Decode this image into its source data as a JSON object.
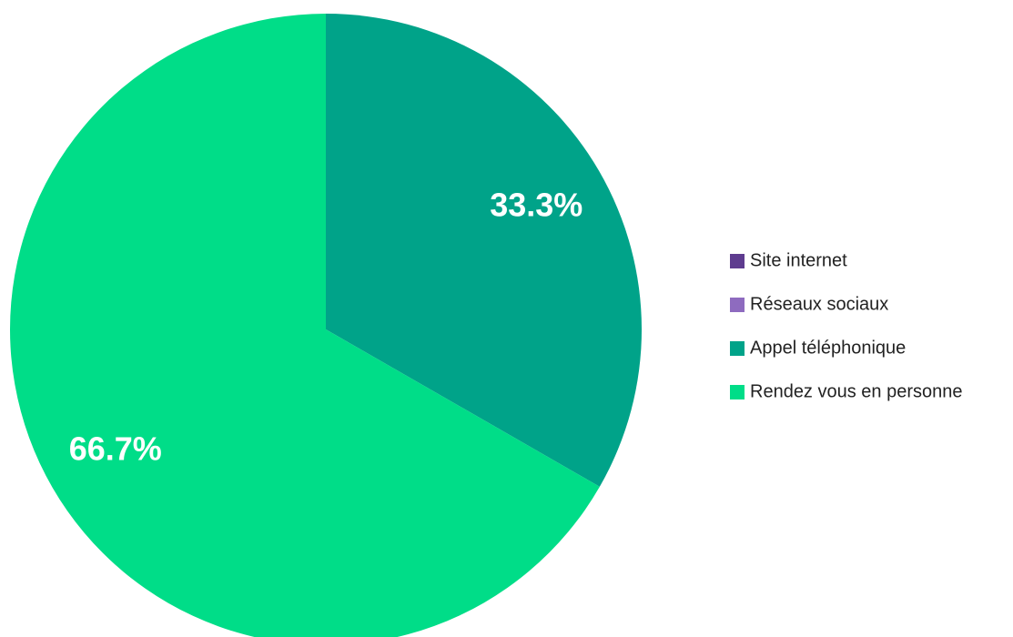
{
  "chart_data": {
    "type": "pie",
    "categories": [
      "Site internet",
      "Réseaux sociaux",
      "Appel téléphonique",
      "Rendez vous en personne"
    ],
    "values": [
      0,
      0,
      33.3,
      66.7
    ],
    "value_labels": [
      null,
      null,
      "33.3%",
      "66.7%"
    ],
    "colors": [
      "#5e3c8f",
      "#8e6bbf",
      "#00a389",
      "#00dd88"
    ],
    "legend": "right"
  }
}
